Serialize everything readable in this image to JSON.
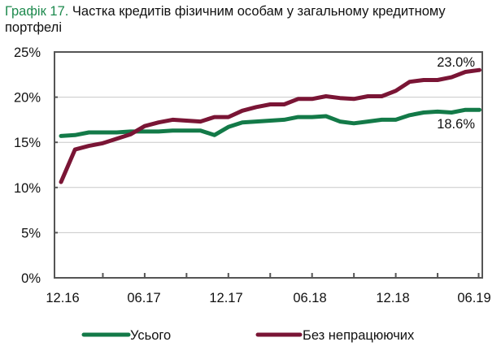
{
  "title": {
    "prefix": "Графік 17.",
    "text": " Частка кредитів фізичним особам у загальному кредитному портфелі"
  },
  "chart_data": {
    "type": "line",
    "title": "Графік 17. Частка кредитів фізичним особам у загальному кредитному портфелі",
    "xlabel": "",
    "ylabel": "",
    "ylim": [
      0,
      25
    ],
    "y_ticks": [
      "0%",
      "5%",
      "10%",
      "15%",
      "20%",
      "25%"
    ],
    "x_tick_labels": [
      "12.16",
      "06.17",
      "12.17",
      "06.18",
      "12.18",
      "06.19"
    ],
    "grid": true,
    "legend_position": "bottom",
    "x": [
      "12.16",
      "01.17",
      "02.17",
      "03.17",
      "04.17",
      "05.17",
      "06.17",
      "07.17",
      "08.17",
      "09.17",
      "10.17",
      "11.17",
      "12.17",
      "01.18",
      "02.18",
      "03.18",
      "04.18",
      "05.18",
      "06.18",
      "07.18",
      "08.18",
      "09.18",
      "10.18",
      "11.18",
      "12.18",
      "01.19",
      "02.19",
      "03.19",
      "04.19",
      "05.19",
      "06.19"
    ],
    "series": [
      {
        "name": "Усього",
        "color": "#137a48",
        "values": [
          15.7,
          15.8,
          16.1,
          16.1,
          16.1,
          16.2,
          16.2,
          16.2,
          16.3,
          16.3,
          16.3,
          15.8,
          16.7,
          17.2,
          17.3,
          17.4,
          17.5,
          17.8,
          17.8,
          17.9,
          17.3,
          17.1,
          17.3,
          17.5,
          17.5,
          18.0,
          18.3,
          18.4,
          18.3,
          18.6,
          18.6
        ]
      },
      {
        "name": "Без непрацюючих",
        "color": "#7a1535",
        "values": [
          10.6,
          14.2,
          14.6,
          14.9,
          15.4,
          15.9,
          16.8,
          17.2,
          17.5,
          17.4,
          17.3,
          17.8,
          17.8,
          18.5,
          18.9,
          19.2,
          19.2,
          19.8,
          19.8,
          20.1,
          19.9,
          19.8,
          20.1,
          20.1,
          20.7,
          21.7,
          21.9,
          21.9,
          22.2,
          22.8,
          23.0
        ]
      }
    ],
    "annotations": [
      {
        "text": "23.0%",
        "series": "Без непрацюючих",
        "point": "06.19"
      },
      {
        "text": "18.6%",
        "series": "Усього",
        "point": "06.19"
      }
    ]
  },
  "legend": {
    "items": [
      {
        "label": "Усього",
        "color": "#137a48"
      },
      {
        "label": "Без непрацюючих",
        "color": "#7a1535"
      }
    ]
  },
  "colors": {
    "title_accent": "#1e8a4e",
    "axis": "#555555",
    "grid": "#c8c8c8"
  }
}
